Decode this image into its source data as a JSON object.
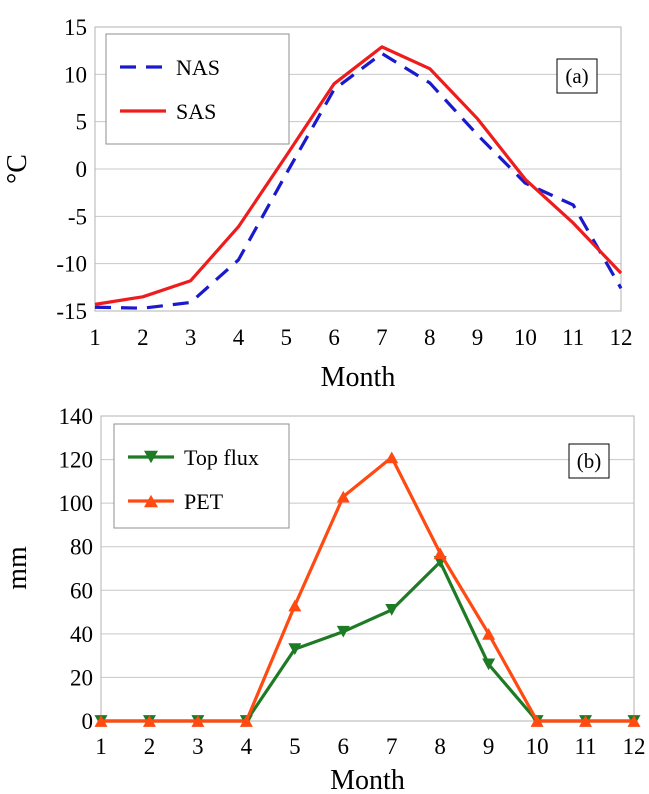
{
  "chart_data": [
    {
      "type": "line",
      "panel_label": "(a)",
      "x": [
        1,
        2,
        3,
        4,
        5,
        6,
        7,
        8,
        9,
        10,
        11,
        12
      ],
      "xlabel": "Month",
      "ylabel": "°C",
      "xlim": [
        1,
        12
      ],
      "ylim": [
        -15,
        15
      ],
      "yticks": [
        -15,
        -10,
        -5,
        0,
        5,
        10,
        15
      ],
      "grid": true,
      "legend_position": "top-left",
      "series": [
        {
          "name": "NAS",
          "color": "#1a1acc",
          "style": "dashed",
          "values": [
            -14.6,
            -14.7,
            -14.1,
            -9.6,
            -0.5,
            8.4,
            12.2,
            9.1,
            3.6,
            -1.5,
            -3.8,
            -12.6
          ]
        },
        {
          "name": "SAS",
          "color": "#ee1c1c",
          "style": "solid",
          "values": [
            -14.3,
            -13.5,
            -11.8,
            -6.1,
            1.4,
            9.0,
            12.9,
            10.6,
            5.3,
            -1.1,
            -5.7,
            -11.0
          ]
        }
      ]
    },
    {
      "type": "line",
      "panel_label": "(b)",
      "x": [
        1,
        2,
        3,
        4,
        5,
        6,
        7,
        8,
        9,
        10,
        11,
        12
      ],
      "xlabel": "Month",
      "ylabel": "mm",
      "xlim": [
        1,
        12
      ],
      "ylim": [
        0,
        140
      ],
      "yticks": [
        0,
        20,
        40,
        60,
        80,
        100,
        120,
        140
      ],
      "grid": true,
      "legend_position": "top-left",
      "series": [
        {
          "name": "Top flux",
          "color": "#1e7a24",
          "marker": "triangle-down",
          "values": [
            0,
            0,
            0,
            0,
            33,
            41,
            51,
            73,
            26,
            0,
            0,
            0
          ]
        },
        {
          "name": "PET",
          "color": "#ff4a12",
          "marker": "triangle-up",
          "values": [
            0,
            0,
            0,
            0,
            53,
            103,
            121,
            77,
            40,
            0,
            0,
            0
          ]
        }
      ]
    }
  ]
}
